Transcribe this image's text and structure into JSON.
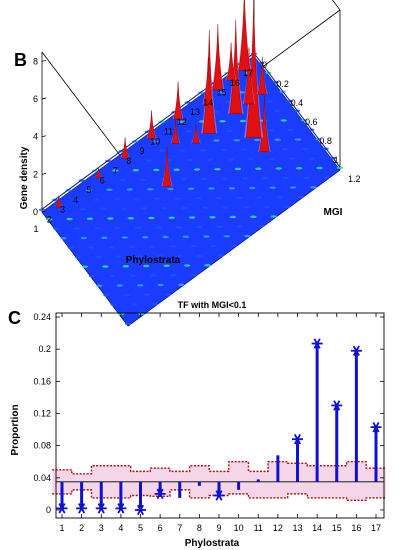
{
  "panel_b": {
    "letter": "B"
  },
  "panel_c": {
    "letter": "C"
  },
  "chart_data": [
    {
      "type": "surface3d",
      "title": "",
      "xlabel": "Phylostrata",
      "ylabel": "MGI",
      "zlabel": "Gene density",
      "x_ticks": [
        "1",
        "2",
        "3",
        "4",
        "5",
        "6",
        "7",
        "8",
        "9",
        "10",
        "11",
        "12",
        "13",
        "14",
        "15",
        "16",
        "17"
      ],
      "y_ticks": [
        "0",
        "0.2",
        "0.4",
        "0.6",
        "0.8",
        "1",
        "1.2"
      ],
      "z_ticks": [
        "0",
        "2",
        "4",
        "6",
        "8"
      ],
      "xlim": [
        1,
        17
      ],
      "ylim": [
        0,
        1.2
      ],
      "zlim": [
        0,
        8.5
      ],
      "colors": {
        "surface": "#1a3cff",
        "peaks": "#e01010",
        "highlight": "#ff80c0",
        "low": "#30e090"
      },
      "peaks": [
        {
          "x": 2,
          "y": 0.05,
          "z": 0.6
        },
        {
          "x": 5,
          "y": 0.05,
          "z": 0.5
        },
        {
          "x": 7,
          "y": 0.05,
          "z": 1.1
        },
        {
          "x": 8,
          "y": 0.45,
          "z": 2.1
        },
        {
          "x": 9,
          "y": 0.05,
          "z": 1.5
        },
        {
          "x": 10,
          "y": 0.2,
          "z": 1.2
        },
        {
          "x": 11,
          "y": 0.3,
          "z": 1.0
        },
        {
          "x": 11,
          "y": 0.05,
          "z": 2.0
        },
        {
          "x": 12,
          "y": 0.3,
          "z": 5.5
        },
        {
          "x": 13,
          "y": 0.1,
          "z": 2.5
        },
        {
          "x": 14,
          "y": 0.05,
          "z": 3.5
        },
        {
          "x": 14,
          "y": 0.3,
          "z": 5.0
        },
        {
          "x": 14,
          "y": 0.55,
          "z": 7.3
        },
        {
          "x": 14,
          "y": 0.7,
          "z": 3.0
        },
        {
          "x": 15,
          "y": 0.05,
          "z": 2.0
        },
        {
          "x": 15,
          "y": 0.3,
          "z": 3.0
        },
        {
          "x": 16,
          "y": 0.05,
          "z": 4.3
        },
        {
          "x": 16,
          "y": 0.3,
          "z": 2.0
        }
      ]
    },
    {
      "type": "stem",
      "title": "TF with MGI<0.1",
      "xlabel": "Phylostrata",
      "ylabel": "Proportion",
      "categories": [
        "1",
        "2",
        "3",
        "4",
        "5",
        "6",
        "7",
        "8",
        "9",
        "10",
        "11",
        "12",
        "13",
        "14",
        "15",
        "16",
        "17"
      ],
      "values": [
        0.002,
        0.002,
        0.002,
        0.002,
        0.0,
        0.02,
        0.015,
        0.03,
        0.018,
        0.025,
        0.038,
        0.068,
        0.088,
        0.207,
        0.13,
        0.198,
        0.103
      ],
      "markers": [
        true,
        true,
        true,
        true,
        true,
        true,
        false,
        false,
        true,
        false,
        false,
        false,
        true,
        true,
        true,
        true,
        true
      ],
      "baseline": 0.035,
      "upper_band": [
        0.05,
        0.045,
        0.055,
        0.055,
        0.048,
        0.052,
        0.048,
        0.055,
        0.048,
        0.06,
        0.048,
        0.06,
        0.058,
        0.055,
        0.055,
        0.06,
        0.052
      ],
      "lower_band": [
        0.02,
        0.025,
        0.015,
        0.015,
        0.018,
        0.017,
        0.025,
        0.015,
        0.018,
        0.02,
        0.015,
        0.015,
        0.02,
        0.015,
        0.015,
        0.012,
        0.015
      ],
      "y_ticks": [
        0,
        0.04,
        0.08,
        0.12,
        0.16,
        0.2,
        0.24
      ],
      "ylim": [
        -0.01,
        0.245
      ],
      "colors": {
        "stem": "#1010d0",
        "band": "#b01010",
        "band_fill": "#f0c8e0",
        "baseline": "#000000"
      }
    }
  ]
}
